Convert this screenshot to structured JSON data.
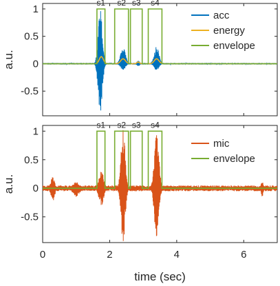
{
  "chart_data": [
    {
      "type": "line",
      "title": "",
      "xlabel": "",
      "ylabel": "a.u.",
      "xlim": [
        0,
        7
      ],
      "ylim": [
        -0.95,
        1.1
      ],
      "x_ticks": [
        "0",
        "2",
        "4",
        "6"
      ],
      "y_ticks": [
        "-0.5",
        "0",
        "0.5",
        "1"
      ],
      "y_tick_values": [
        -0.5,
        0,
        0.5,
        1
      ],
      "legend_position": "top-right",
      "segments": [
        {
          "label": "s1",
          "start": 1.62,
          "end": 1.86
        },
        {
          "label": "s2",
          "start": 2.15,
          "end": 2.56
        },
        {
          "label": "s3",
          "start": 2.62,
          "end": 2.97
        },
        {
          "label": "s4",
          "start": 3.15,
          "end": 3.56
        }
      ],
      "series": [
        {
          "name": "acc",
          "color": "#0072BD",
          "kind": "oscillation",
          "baseline_amplitude": 0.015,
          "bursts": [
            {
              "center": 1.72,
              "width": 0.13,
              "pos": 1.0,
              "neg": 0.9
            },
            {
              "center": 2.4,
              "width": 0.15,
              "pos": 0.3,
              "neg": 0.12
            },
            {
              "center": 2.85,
              "width": 0.09,
              "pos": 0.06,
              "neg": 0.05
            },
            {
              "center": 3.4,
              "width": 0.15,
              "pos": 0.32,
              "neg": 0.12
            }
          ]
        },
        {
          "name": "energy",
          "color": "#EDB120",
          "kind": "smooth",
          "bumps": [
            {
              "center": 1.75,
              "width": 0.12,
              "height": 0.13
            },
            {
              "center": 2.4,
              "width": 0.14,
              "height": 0.09
            },
            {
              "center": 2.85,
              "width": 0.08,
              "height": 0.03
            },
            {
              "center": 3.4,
              "width": 0.14,
              "height": 0.09
            }
          ]
        },
        {
          "name": "envelope",
          "color": "#77AC30",
          "kind": "gates"
        }
      ]
    },
    {
      "type": "line",
      "title": "",
      "xlabel": "time (sec)",
      "ylabel": "a.u.",
      "xlim": [
        0,
        7
      ],
      "ylim": [
        -0.95,
        1.1
      ],
      "x_ticks": [
        "0",
        "2",
        "4",
        "6"
      ],
      "y_ticks": [
        "-0.5",
        "0",
        "0.5",
        "1"
      ],
      "y_tick_values": [
        -0.5,
        0,
        0.5,
        1
      ],
      "legend_position": "top-right",
      "segments": [
        {
          "label": "s1",
          "start": 1.62,
          "end": 1.86
        },
        {
          "label": "s2",
          "start": 2.15,
          "end": 2.56
        },
        {
          "label": "s3",
          "start": 2.62,
          "end": 2.97
        },
        {
          "label": "s4",
          "start": 3.15,
          "end": 3.56
        }
      ],
      "series": [
        {
          "name": "mic",
          "color": "#D95319",
          "kind": "oscillation",
          "baseline_amplitude": 0.05,
          "bursts": [
            {
              "center": 0.3,
              "width": 0.12,
              "pos": 0.2,
              "neg": 0.25
            },
            {
              "center": 1.0,
              "width": 0.2,
              "pos": 0.12,
              "neg": 0.15
            },
            {
              "center": 1.75,
              "width": 0.15,
              "pos": 0.3,
              "neg": 0.3
            },
            {
              "center": 2.4,
              "width": 0.13,
              "pos": 1.05,
              "neg": 0.95
            },
            {
              "center": 3.4,
              "width": 0.14,
              "pos": 0.97,
              "neg": 0.85
            },
            {
              "center": 6.55,
              "width": 0.07,
              "pos": 0.12,
              "neg": 0.15
            }
          ]
        },
        {
          "name": "envelope",
          "color": "#77AC30",
          "kind": "gates"
        }
      ]
    }
  ]
}
